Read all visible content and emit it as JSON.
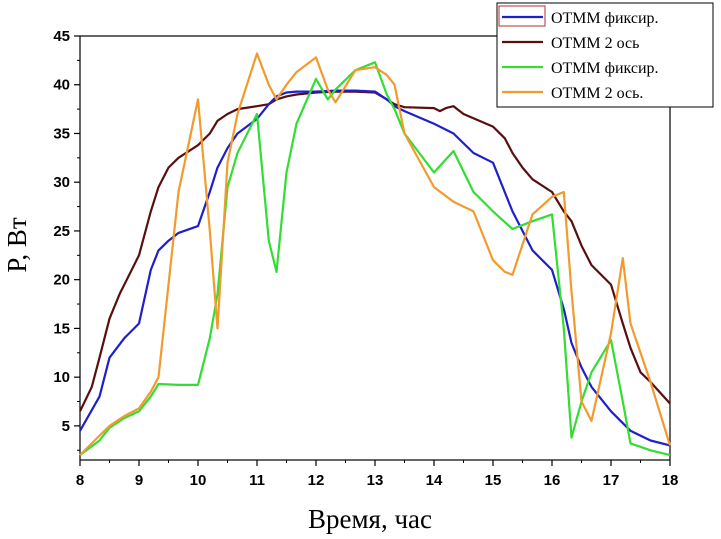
{
  "chart_data": {
    "type": "line",
    "xlabel": "Время, час",
    "ylabel": "P, Вт",
    "xlim": [
      8,
      18
    ],
    "ylim": [
      1.5,
      45
    ],
    "x_ticks": [
      8,
      9,
      10,
      11,
      12,
      13,
      14,
      15,
      16,
      17,
      18
    ],
    "y_ticks": [
      5,
      10,
      15,
      20,
      25,
      30,
      35,
      40,
      45
    ],
    "legend_position": "top-right",
    "series": [
      {
        "name": "ОТММ фиксир.",
        "color": "#1f1fcc",
        "x": [
          8,
          8.33,
          8.5,
          8.75,
          9,
          9.2,
          9.33,
          9.5,
          9.67,
          10,
          10.2,
          10.33,
          10.5,
          10.67,
          11,
          11.2,
          11.33,
          11.5,
          11.67,
          12,
          12.33,
          12.67,
          13,
          13.2,
          13.33,
          13.5,
          14,
          14.33,
          14.67,
          15,
          15.33,
          15.67,
          16,
          16.2,
          16.33,
          16.5,
          16.67,
          17,
          17.33,
          17.67,
          18
        ],
        "y": [
          4.5,
          8,
          12,
          14,
          15.5,
          21,
          23,
          24,
          24.8,
          25.5,
          29,
          31.5,
          33.5,
          35,
          36.5,
          38,
          38.8,
          39.2,
          39.3,
          39.3,
          39.4,
          39.4,
          39.3,
          38.5,
          37.8,
          37.3,
          36,
          35,
          33,
          32,
          27,
          23,
          21,
          17,
          13.5,
          11,
          9,
          6.5,
          4.5,
          3.5,
          3
        ]
      },
      {
        "name": "ОТММ 2 ось",
        "color": "#5a0f0f",
        "x": [
          8,
          8.2,
          8.33,
          8.5,
          8.67,
          9,
          9.2,
          9.33,
          9.5,
          9.67,
          10,
          10.2,
          10.33,
          10.5,
          10.67,
          11,
          11.2,
          11.33,
          11.5,
          11.67,
          12,
          12.33,
          12.67,
          13,
          13.2,
          13.33,
          13.5,
          14,
          14.1,
          14.2,
          14.33,
          14.5,
          15,
          15.2,
          15.33,
          15.5,
          15.67,
          16,
          16.2,
          16.33,
          16.5,
          16.67,
          17,
          17.2,
          17.33,
          17.5,
          17.67,
          18
        ],
        "y": [
          6.5,
          9,
          12,
          16,
          18.5,
          22.5,
          27,
          29.5,
          31.5,
          32.5,
          33.8,
          35,
          36.3,
          37,
          37.5,
          37.8,
          38,
          38.5,
          38.8,
          39,
          39.2,
          39.3,
          39.3,
          39.2,
          38.5,
          38,
          37.7,
          37.6,
          37.3,
          37.6,
          37.8,
          37,
          35.7,
          34.5,
          33,
          31.5,
          30.3,
          29,
          27,
          26,
          23.5,
          21.5,
          19.5,
          15.5,
          13,
          10.5,
          9.5,
          7.3
        ]
      },
      {
        "name": "ОТММ фиксир.",
        "color": "#33dd33",
        "x": [
          8,
          8.33,
          8.5,
          8.75,
          9,
          9.2,
          9.33,
          9.67,
          10,
          10.2,
          10.33,
          10.5,
          10.67,
          11,
          11.2,
          11.33,
          11.5,
          11.67,
          12,
          12.2,
          12.33,
          12.67,
          13,
          13.2,
          13.33,
          13.5,
          14,
          14.33,
          14.67,
          15,
          15.33,
          15.67,
          16,
          16.2,
          16.33,
          16.5,
          16.67,
          17,
          17.2,
          17.33,
          17.67,
          18
        ],
        "y": [
          2,
          3.5,
          4.8,
          5.8,
          6.5,
          8,
          9.3,
          9.2,
          9.2,
          14,
          18.5,
          29.5,
          33,
          37,
          24,
          20.8,
          31,
          36,
          40.6,
          38.5,
          39.5,
          41.5,
          42.3,
          39,
          37.5,
          35,
          31,
          33.2,
          29,
          27,
          25.2,
          26,
          26.7,
          15,
          3.8,
          7.5,
          10.5,
          13.8,
          7.5,
          3.2,
          2.5,
          2
        ]
      },
      {
        "name": "ОТММ 2 ось.",
        "color": "#f29a2e",
        "x": [
          8,
          8.33,
          8.5,
          8.75,
          9,
          9.2,
          9.33,
          9.67,
          10,
          10.2,
          10.33,
          10.5,
          10.67,
          11,
          11.2,
          11.33,
          11.5,
          11.67,
          12,
          12.2,
          12.33,
          12.67,
          13,
          13.2,
          13.33,
          13.5,
          14,
          14.33,
          14.67,
          15,
          15.2,
          15.33,
          15.67,
          16,
          16.2,
          16.33,
          16.5,
          16.67,
          17,
          17.2,
          17.33,
          17.67,
          18
        ],
        "y": [
          2,
          4,
          5,
          6,
          6.8,
          8.5,
          10,
          29,
          38.5,
          25,
          15,
          32,
          37,
          43.2,
          40,
          38.5,
          40,
          41.3,
          42.8,
          39.5,
          38.2,
          41.5,
          41.8,
          41,
          40,
          35,
          29.5,
          28,
          27,
          22,
          20.8,
          20.5,
          26.7,
          28.5,
          29,
          18.8,
          7.5,
          5.5,
          14.5,
          22.2,
          15.5,
          9.5,
          3
        ]
      }
    ]
  }
}
